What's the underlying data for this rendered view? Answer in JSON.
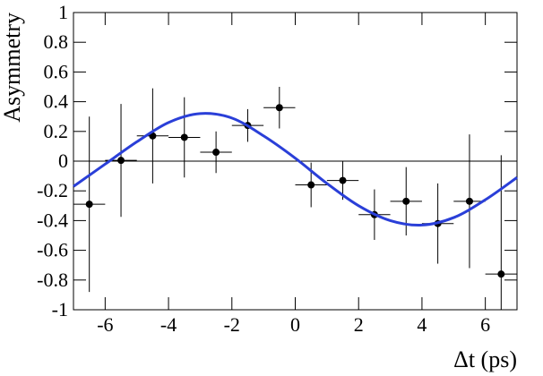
{
  "chart_data": {
    "type": "scatter",
    "xlabel": "Δt (ps)",
    "ylabel": "Asymmetry",
    "xlim": [
      -7,
      7
    ],
    "xticks": [
      -6,
      -4,
      -2,
      0,
      2,
      4,
      6
    ],
    "ylim": [
      -1,
      1
    ],
    "yticks": [
      -1,
      -0.8,
      -0.6,
      -0.4,
      -0.2,
      0,
      0.2,
      0.4,
      0.6,
      0.8,
      1
    ],
    "hline": 0,
    "series": [
      {
        "type": "scatter",
        "color": "#000000",
        "x": [
          -6.5,
          -5.5,
          -4.5,
          -3.5,
          -2.5,
          -1.5,
          -0.5,
          0.5,
          1.5,
          2.5,
          3.5,
          4.5,
          5.5,
          6.5
        ],
        "values": [
          -0.29,
          0.005,
          0.17,
          0.16,
          0.06,
          0.24,
          0.36,
          -0.16,
          -0.13,
          -0.36,
          -0.27,
          -0.42,
          -0.27,
          -0.76
        ],
        "yerr": [
          0.59,
          0.38,
          0.32,
          0.27,
          0.14,
          0.11,
          0.14,
          0.15,
          0.13,
          0.17,
          0.23,
          0.27,
          0.45,
          0.8
        ],
        "xerr": [
          0.5,
          0.5,
          0.5,
          0.5,
          0.5,
          0.5,
          0.5,
          0.5,
          0.5,
          0.5,
          0.5,
          0.5,
          0.5,
          0.5
        ]
      },
      {
        "type": "line",
        "color": "#2a3fd8",
        "x": [
          -7,
          -6,
          -5,
          -4,
          -3,
          -2,
          -1,
          0,
          1,
          2,
          3,
          4,
          5,
          6,
          7
        ],
        "values": [
          -0.17,
          -0.02,
          0.13,
          0.26,
          0.32,
          0.29,
          0.17,
          0.02,
          -0.15,
          -0.3,
          -0.4,
          -0.43,
          -0.38,
          -0.26,
          -0.11
        ]
      }
    ]
  }
}
